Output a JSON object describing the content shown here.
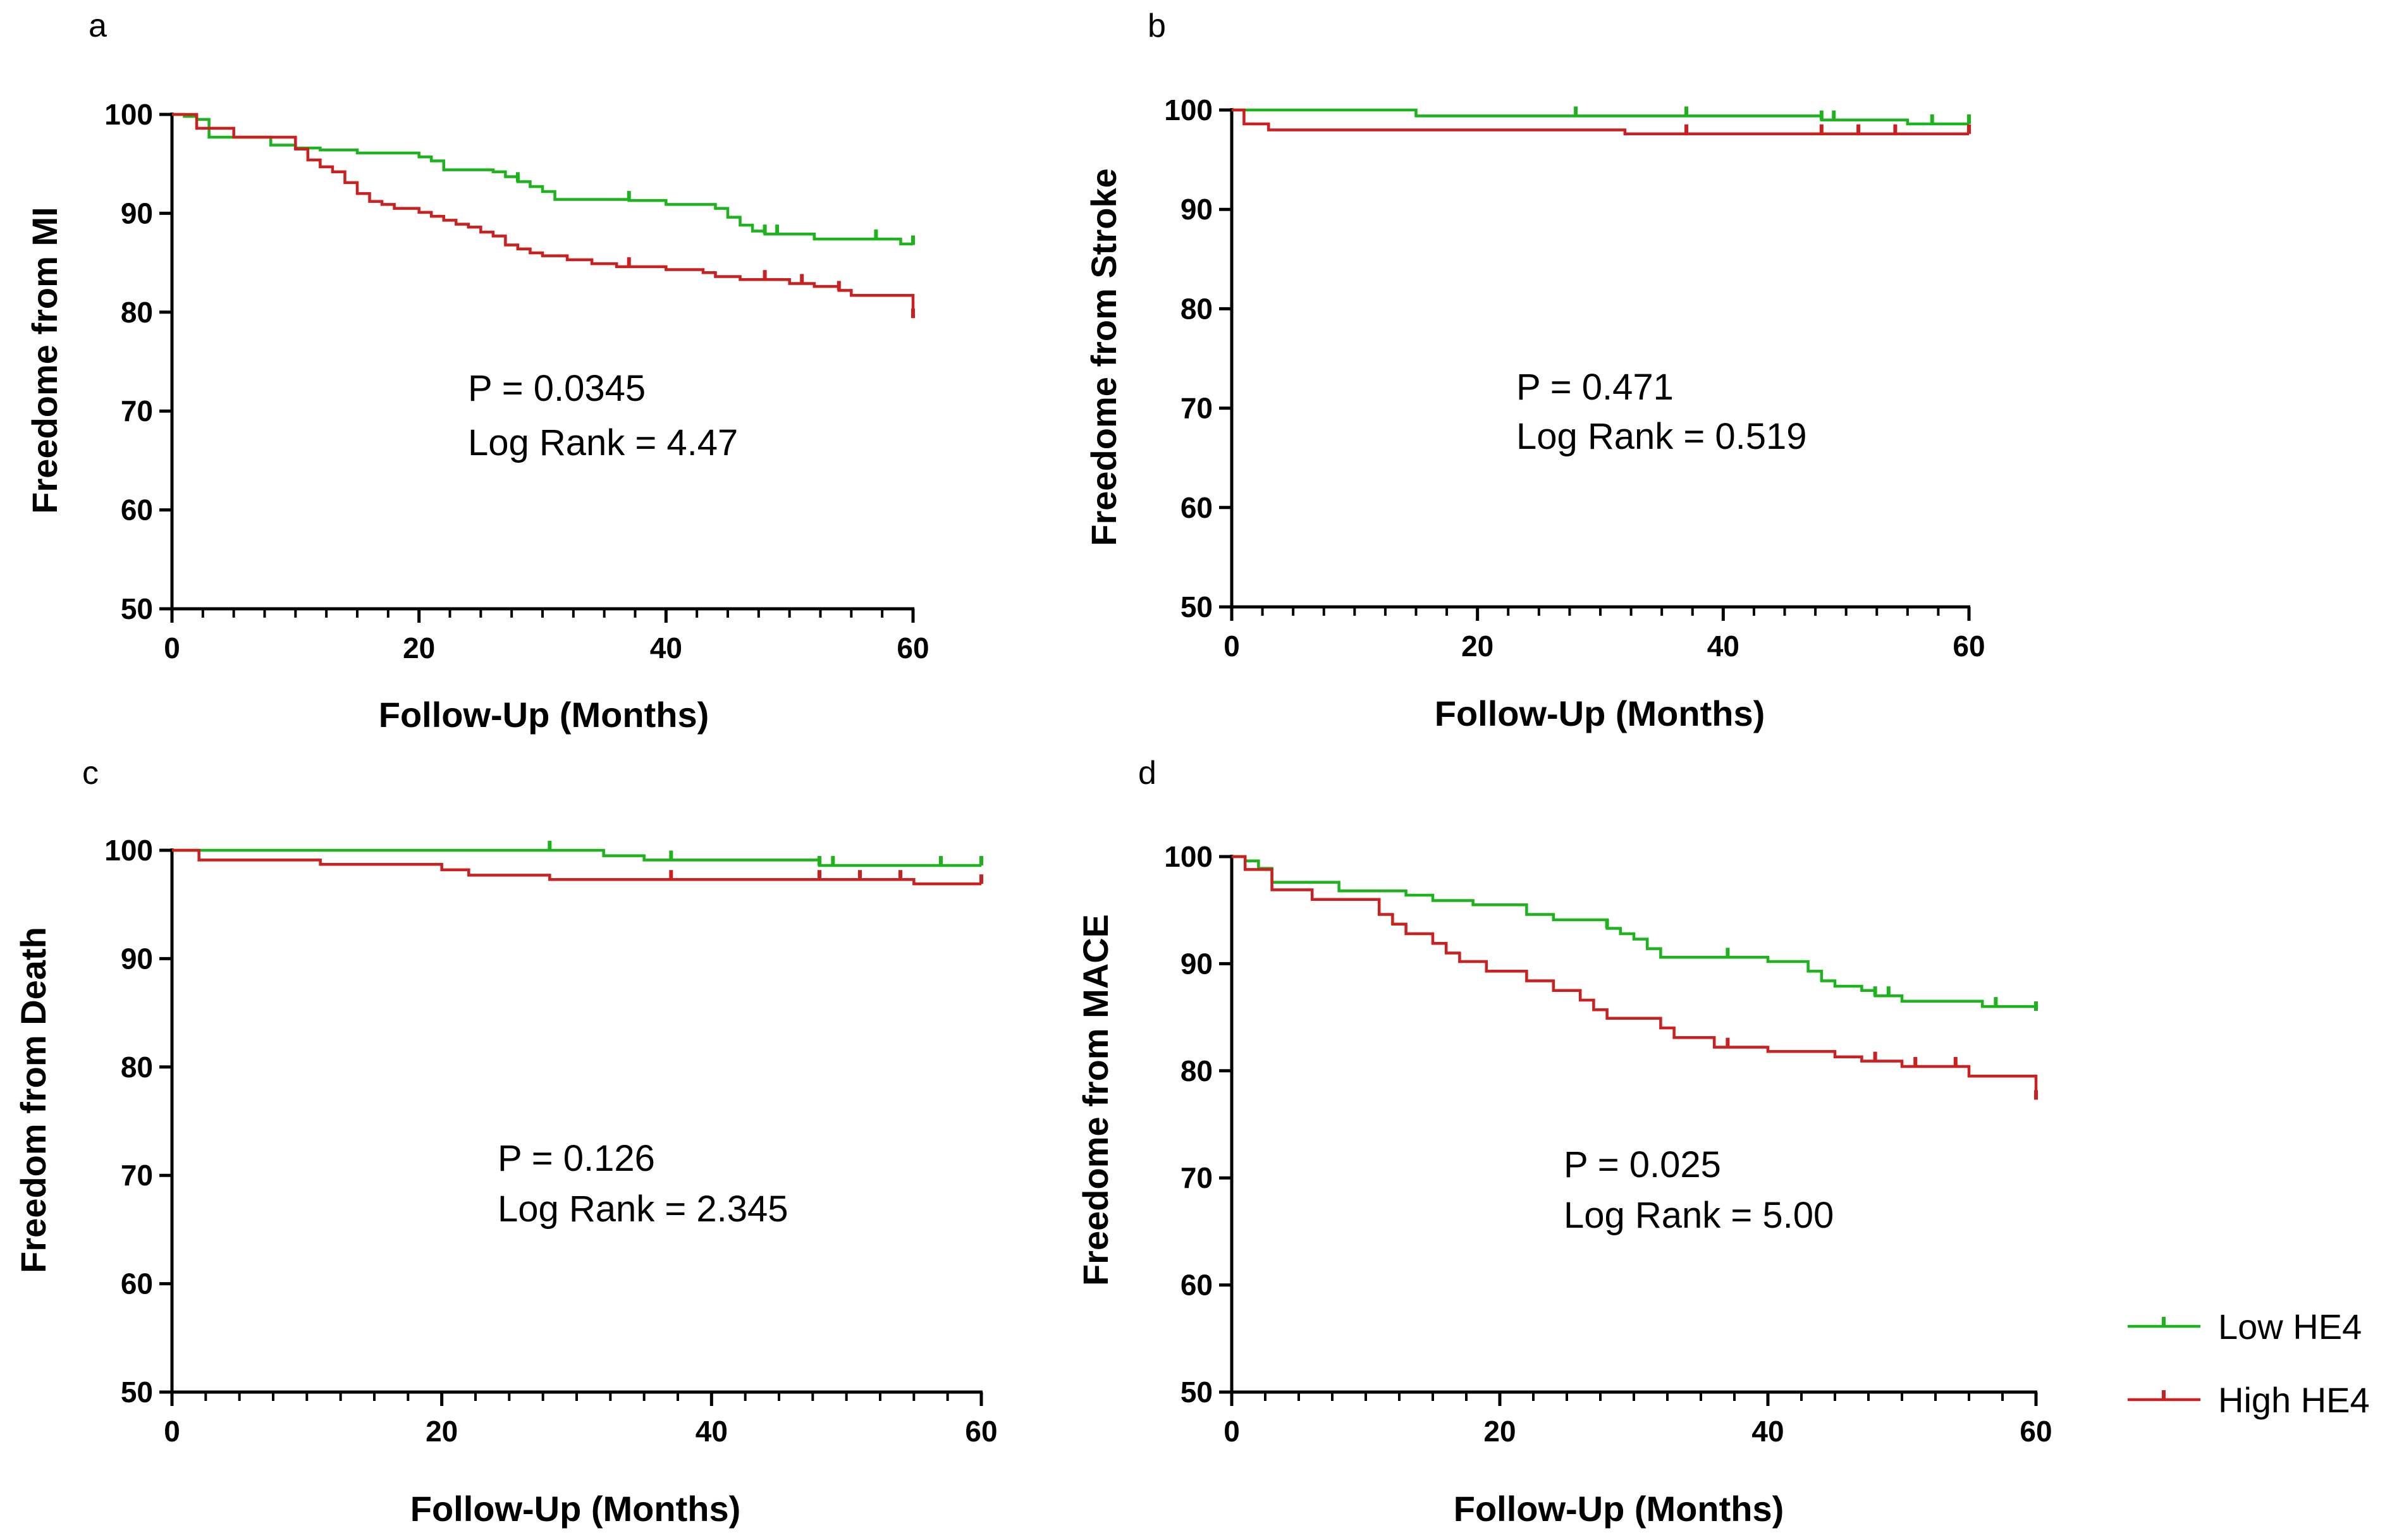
{
  "colors": {
    "low": "#1db31d",
    "high": "#cc1f1f"
  },
  "legend": {
    "low_label": "Low HE4",
    "high_label": "High HE4",
    "position": "bottom-right"
  },
  "chart_data": [
    {
      "type": "line",
      "panel": "a",
      "xlabel": "Follow-Up (Months)",
      "ylabel": "Freedome from MI",
      "xlim": [
        0,
        60
      ],
      "ylim": [
        50,
        100
      ],
      "xticks": [
        0,
        20,
        40,
        60
      ],
      "yticks": [
        50,
        60,
        70,
        80,
        90,
        100
      ],
      "stat_p": "P = 0.0345",
      "stat_lr": "Log Rank  = 4.47",
      "series": [
        {
          "name": "Low HE4",
          "color_key": "low",
          "steps": [
            [
              0,
              100
            ],
            [
              1,
              99.8
            ],
            [
              2,
              99.5
            ],
            [
              3,
              97.7
            ],
            [
              8,
              96.9
            ],
            [
              10,
              96.6
            ],
            [
              12,
              96.4
            ],
            [
              15,
              96.1
            ],
            [
              20,
              95.7
            ],
            [
              21,
              95.3
            ],
            [
              22,
              94.4
            ],
            [
              26,
              94.2
            ],
            [
              27,
              93.7
            ],
            [
              28,
              93.2
            ],
            [
              29,
              92.7
            ],
            [
              30,
              92.2
            ],
            [
              31,
              91.4
            ],
            [
              37,
              91.3
            ],
            [
              40,
              90.9
            ],
            [
              44,
              90.5
            ],
            [
              45,
              89.6
            ],
            [
              46,
              88.8
            ],
            [
              47,
              88.2
            ],
            [
              48,
              87.9
            ],
            [
              52,
              87.4
            ],
            [
              59,
              86.9
            ],
            [
              60,
              86.8
            ]
          ],
          "censor": [
            28,
            37,
            48,
            49,
            57,
            60
          ]
        },
        {
          "name": "High HE4",
          "color_key": "high",
          "steps": [
            [
              0,
              100
            ],
            [
              2,
              98.6
            ],
            [
              5,
              97.7
            ],
            [
              10,
              96.5
            ],
            [
              11,
              95.4
            ],
            [
              12,
              94.7
            ],
            [
              13,
              94.2
            ],
            [
              14,
              93.1
            ],
            [
              15,
              92.0
            ],
            [
              16,
              91.2
            ],
            [
              17,
              90.9
            ],
            [
              18,
              90.5
            ],
            [
              20,
              90.1
            ],
            [
              21,
              89.7
            ],
            [
              22,
              89.3
            ],
            [
              23,
              88.9
            ],
            [
              24,
              88.6
            ],
            [
              25,
              88.1
            ],
            [
              26,
              87.7
            ],
            [
              27,
              86.8
            ],
            [
              28,
              86.4
            ],
            [
              29,
              86.0
            ],
            [
              30,
              85.7
            ],
            [
              32,
              85.3
            ],
            [
              34,
              84.9
            ],
            [
              36,
              84.6
            ],
            [
              40,
              84.3
            ],
            [
              43,
              84.0
            ],
            [
              44,
              83.6
            ],
            [
              46,
              83.3
            ],
            [
              50,
              82.9
            ],
            [
              52,
              82.6
            ],
            [
              54,
              82.2
            ],
            [
              55,
              81.7
            ],
            [
              60,
              80.8
            ],
            [
              60,
              79.4
            ]
          ],
          "censor": [
            37,
            48,
            51,
            54,
            60
          ]
        }
      ]
    },
    {
      "type": "line",
      "panel": "b",
      "xlabel": "Follow-Up (Months)",
      "ylabel": "Freedome from Stroke",
      "xlim": [
        0,
        60
      ],
      "ylim": [
        50,
        100
      ],
      "xticks": [
        0,
        20,
        40,
        60
      ],
      "yticks": [
        50,
        60,
        70,
        80,
        90,
        100
      ],
      "stat_p": "P = 0.471",
      "stat_lr": "Log Rank  = 0.519",
      "series": [
        {
          "name": "Low HE4",
          "color_key": "low",
          "steps": [
            [
              0,
              100
            ],
            [
              15,
              99.4
            ],
            [
              48,
              99.0
            ],
            [
              55,
              98.6
            ],
            [
              60,
              98.6
            ]
          ],
          "censor": [
            28,
            37,
            48,
            49,
            57,
            60
          ]
        },
        {
          "name": "High HE4",
          "color_key": "high",
          "steps": [
            [
              0,
              100
            ],
            [
              1,
              98.6
            ],
            [
              3,
              98.0
            ],
            [
              32,
              97.6
            ],
            [
              60,
              97.6
            ]
          ],
          "censor": [
            37,
            48,
            51,
            54,
            60
          ]
        }
      ]
    },
    {
      "type": "line",
      "panel": "c",
      "xlabel": "Follow-Up (Months)",
      "ylabel": "Freedom from Death",
      "xlim": [
        0,
        60
      ],
      "ylim": [
        50,
        100
      ],
      "xticks": [
        0,
        20,
        40,
        60
      ],
      "yticks": [
        50,
        60,
        70,
        80,
        90,
        100
      ],
      "stat_p": "P = 0.126",
      "stat_lr": "Log Rank  = 2.345",
      "series": [
        {
          "name": "Low HE4",
          "color_key": "low",
          "steps": [
            [
              0,
              100
            ],
            [
              32,
              99.5
            ],
            [
              35,
              99.1
            ],
            [
              48,
              98.6
            ],
            [
              60,
              98.6
            ]
          ],
          "censor": [
            28,
            37,
            48,
            49,
            57,
            60
          ]
        },
        {
          "name": "High HE4",
          "color_key": "high",
          "steps": [
            [
              0,
              100
            ],
            [
              2,
              99.1
            ],
            [
              11,
              98.7
            ],
            [
              20,
              98.2
            ],
            [
              22,
              97.7
            ],
            [
              28,
              97.3
            ],
            [
              55,
              96.9
            ],
            [
              60,
              96.9
            ]
          ],
          "censor": [
            37,
            48,
            51,
            54,
            60
          ]
        }
      ]
    },
    {
      "type": "line",
      "panel": "d",
      "xlabel": "Follow-Up (Months)",
      "ylabel": "Freedome from MACE",
      "xlim": [
        0,
        60
      ],
      "ylim": [
        50,
        100
      ],
      "xticks": [
        0,
        20,
        40,
        60
      ],
      "yticks": [
        50,
        60,
        70,
        80,
        90,
        100
      ],
      "stat_p": "P = 0.025",
      "stat_lr": "Log Rank  = 5.00",
      "series": [
        {
          "name": "Low HE4",
          "color_key": "low",
          "steps": [
            [
              0,
              100
            ],
            [
              1,
              99.6
            ],
            [
              2,
              98.9
            ],
            [
              3,
              97.6
            ],
            [
              8,
              96.8
            ],
            [
              13,
              96.4
            ],
            [
              15,
              95.9
            ],
            [
              18,
              95.5
            ],
            [
              22,
              94.6
            ],
            [
              24,
              94.1
            ],
            [
              28,
              93.3
            ],
            [
              29,
              92.8
            ],
            [
              30,
              92.3
            ],
            [
              31,
              91.4
            ],
            [
              32,
              90.6
            ],
            [
              40,
              90.2
            ],
            [
              43,
              89.3
            ],
            [
              44,
              88.4
            ],
            [
              45,
              87.9
            ],
            [
              47,
              87.5
            ],
            [
              48,
              87.0
            ],
            [
              50,
              86.5
            ],
            [
              56,
              86.0
            ],
            [
              60,
              85.6
            ]
          ],
          "censor": [
            28,
            37,
            48,
            49,
            57,
            60
          ]
        },
        {
          "name": "High HE4",
          "color_key": "high",
          "steps": [
            [
              0,
              100
            ],
            [
              1,
              98.8
            ],
            [
              3,
              96.9
            ],
            [
              6,
              96.0
            ],
            [
              11,
              94.6
            ],
            [
              12,
              93.7
            ],
            [
              13,
              92.8
            ],
            [
              15,
              91.9
            ],
            [
              16,
              91.0
            ],
            [
              17,
              90.2
            ],
            [
              19,
              89.3
            ],
            [
              22,
              88.4
            ],
            [
              24,
              87.5
            ],
            [
              26,
              86.6
            ],
            [
              27,
              85.7
            ],
            [
              28,
              84.9
            ],
            [
              32,
              84.0
            ],
            [
              33,
              83.1
            ],
            [
              36,
              82.2
            ],
            [
              40,
              81.8
            ],
            [
              45,
              81.3
            ],
            [
              47,
              80.9
            ],
            [
              50,
              80.4
            ],
            [
              55,
              79.5
            ],
            [
              60,
              78.6
            ],
            [
              60,
              77.3
            ]
          ],
          "censor": [
            37,
            48,
            51,
            54,
            60
          ]
        }
      ]
    }
  ]
}
